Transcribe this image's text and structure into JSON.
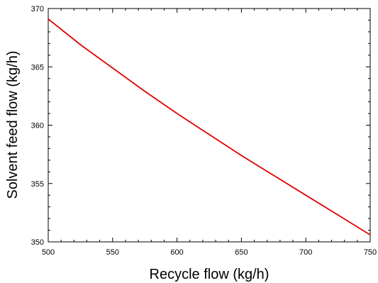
{
  "chart_data": {
    "type": "line",
    "xlabel": "Recycle flow (kg/h)",
    "ylabel": "Solvent feed flow (kg/h)",
    "xlim": [
      500,
      750
    ],
    "ylim": [
      350,
      370
    ],
    "x_ticks": [
      "500",
      "550",
      "600",
      "650",
      "700",
      "750"
    ],
    "y_ticks": [
      "350",
      "355",
      "360",
      "365",
      "370"
    ],
    "grid": false,
    "series": [
      {
        "color": "#e00000",
        "x": [
          500,
          525,
          550,
          575,
          600,
          625,
          650,
          675,
          700,
          725,
          750
        ],
        "y": [
          369.1,
          366.9,
          364.9,
          362.9,
          361.0,
          359.2,
          357.4,
          355.7,
          354.0,
          352.3,
          350.6
        ]
      }
    ]
  }
}
